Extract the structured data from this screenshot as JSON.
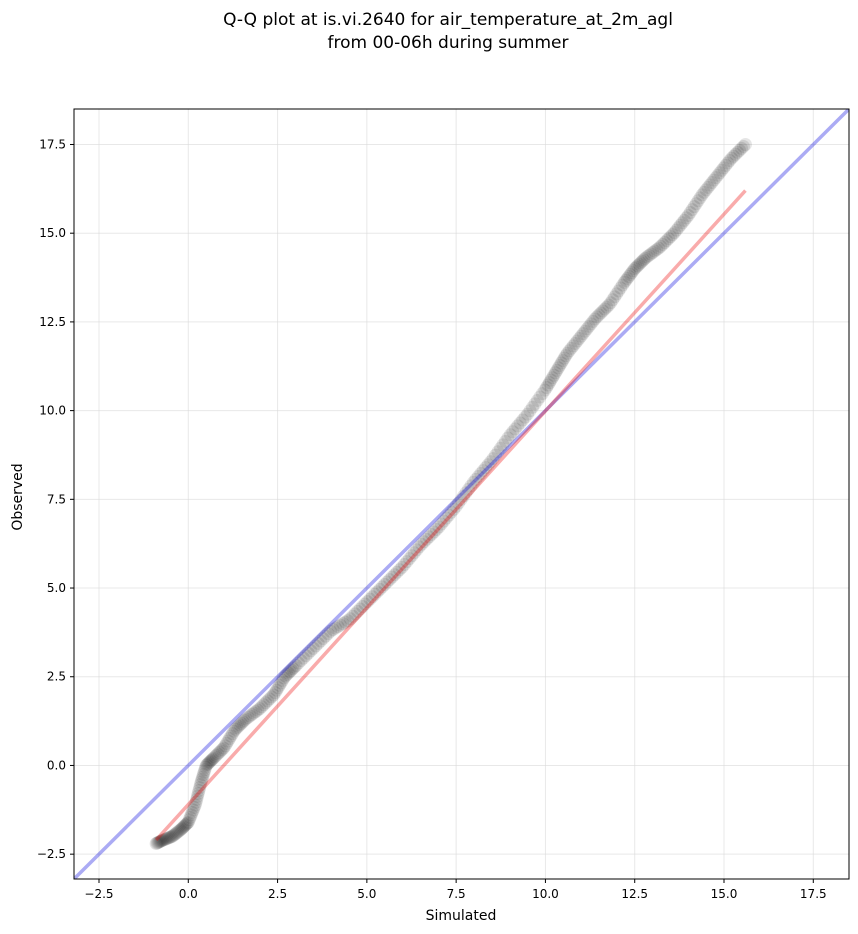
{
  "chart_data": {
    "type": "scatter",
    "title": "Q-Q plot at is.vi.2640 for air_temperature_at_2m_agl",
    "subtitle": "from 00-06h during summer",
    "xlabel": "Simulated",
    "ylabel": "Observed",
    "xlim": [
      -3.2,
      18.5
    ],
    "ylim": [
      -3.2,
      18.5
    ],
    "xticks": [
      -2.5,
      0.0,
      2.5,
      5.0,
      7.5,
      10.0,
      12.5,
      15.0,
      17.5
    ],
    "yticks": [
      -2.5,
      0.0,
      2.5,
      5.0,
      7.5,
      10.0,
      12.5,
      15.0,
      17.5
    ],
    "xtick_labels": [
      "−2.5",
      "0.0",
      "2.5",
      "5.0",
      "7.5",
      "10.0",
      "12.5",
      "15.0",
      "17.5"
    ],
    "ytick_labels": [
      "−2.5",
      "0.0",
      "2.5",
      "5.0",
      "7.5",
      "10.0",
      "12.5",
      "15.0",
      "17.5"
    ],
    "grid": true,
    "point_color": "#000000",
    "identity_line_color": "#0000dd",
    "fit_line_color": "#ee0000",
    "fit_line": {
      "x": [
        -0.9,
        15.6
      ],
      "y": [
        -2.1,
        16.2
      ]
    },
    "identity_line": {
      "x": [
        -3.2,
        18.5
      ],
      "y": [
        -3.2,
        18.5
      ]
    },
    "quantile_anchors": {
      "x": [
        -0.9,
        -0.7,
        -0.45,
        -0.2,
        0.0,
        0.2,
        0.35,
        0.5,
        0.7,
        1.0,
        1.3,
        1.6,
        2.0,
        2.4,
        2.7,
        3.0,
        3.5,
        4.0,
        4.5,
        5.0,
        5.5,
        6.0,
        6.5,
        7.0,
        7.5,
        8.0,
        8.5,
        9.0,
        9.5,
        10.0,
        10.3,
        10.6,
        11.0,
        11.4,
        11.8,
        12.2,
        12.5,
        12.8,
        13.2,
        13.6,
        14.0,
        14.4,
        14.8,
        15.2,
        15.6
      ],
      "y": [
        -2.2,
        -2.1,
        -2.0,
        -1.8,
        -1.6,
        -1.1,
        -0.5,
        0.0,
        0.2,
        0.5,
        1.0,
        1.3,
        1.6,
        2.0,
        2.5,
        2.8,
        3.3,
        3.8,
        4.1,
        4.6,
        5.1,
        5.6,
        6.2,
        6.7,
        7.3,
        8.0,
        8.6,
        9.3,
        9.9,
        10.6,
        11.1,
        11.6,
        12.1,
        12.6,
        13.0,
        13.6,
        14.0,
        14.3,
        14.6,
        15.0,
        15.5,
        16.1,
        16.6,
        17.1,
        17.5
      ]
    },
    "n_points": 320
  }
}
